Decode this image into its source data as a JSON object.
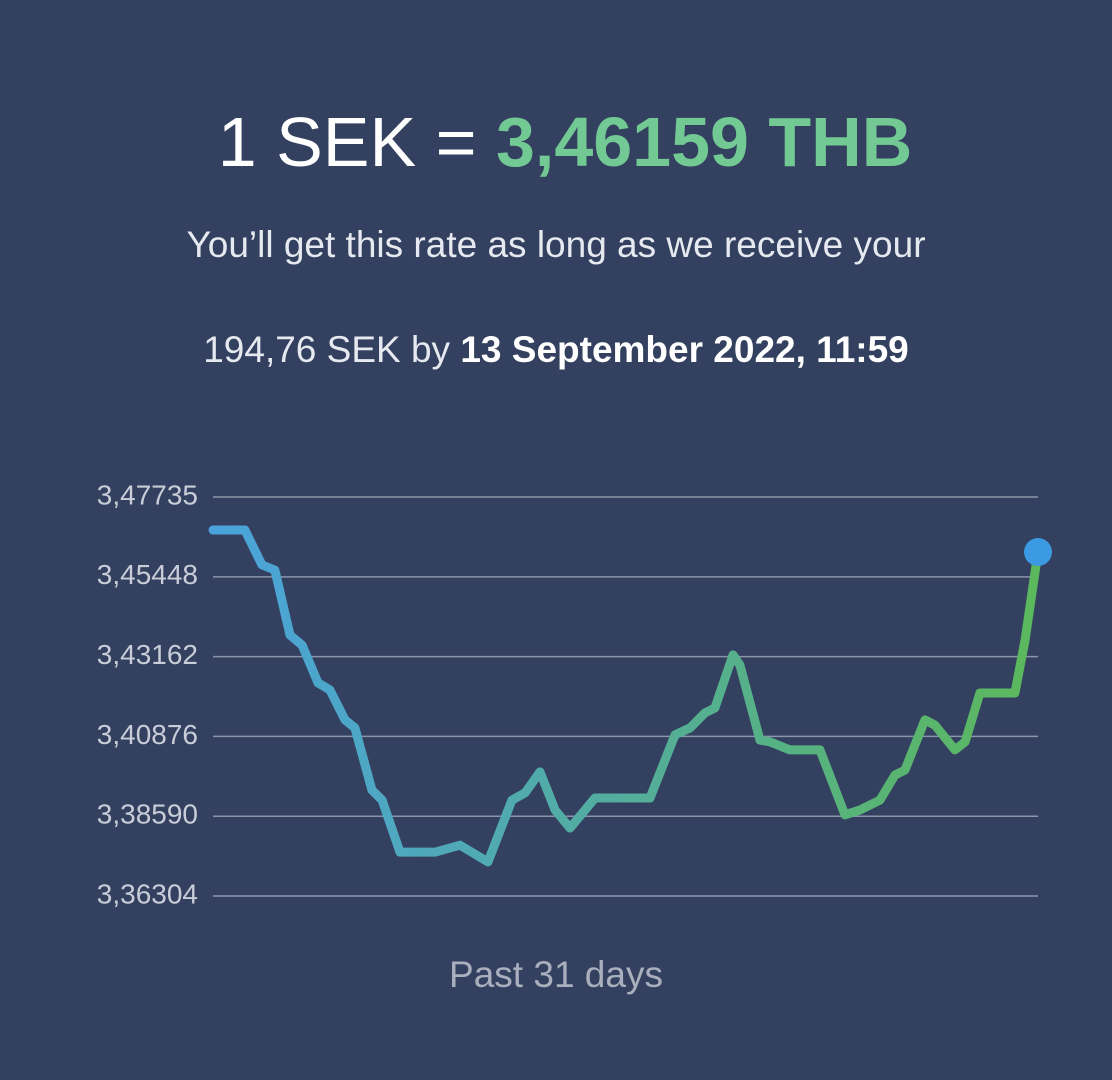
{
  "header": {
    "rate_prefix": "1 SEK = ",
    "rate_value": "3,46159 THB",
    "subtitle": "You’ll get this rate as long as we receive your",
    "amount_prefix": "194,76 SEK by ",
    "deadline": "13 September 2022, 11:59"
  },
  "chart_data": {
    "type": "line",
    "xlabel": "Past 31 days",
    "x": [
      0,
      1.16,
      1.78,
      2.25,
      2.8,
      3.24,
      3.82,
      4.25,
      4.8,
      5.16,
      5.78,
      6.15,
      6.8,
      8.07,
      8.98,
      10,
      10.87,
      11.35,
      11.89,
      12.44,
      12.98,
      13.89,
      15.89,
      16.8,
      17.35,
      17.89,
      18.25,
      18.91,
      19.16,
      19.89,
      20.25,
      20.98,
      22.07,
      22.98,
      23.53,
      24.25,
      24.8,
      25.16,
      25.89,
      26.25,
      26.98,
      27.35,
      27.89,
      29.16,
      29.53,
      30
    ],
    "xlim": [
      0,
      30
    ],
    "series": [
      {
        "values": [
          3.4679,
          3.4679,
          3.4579,
          3.4564,
          3.4378,
          3.4349,
          3.4241,
          3.4221,
          3.4135,
          3.4112,
          3.3934,
          3.3905,
          3.3756,
          3.3756,
          3.3776,
          3.3728,
          3.3905,
          3.3926,
          3.3986,
          3.3877,
          3.3825,
          3.3911,
          3.3911,
          3.4092,
          3.4112,
          3.4155,
          3.4169,
          3.4321,
          3.4292,
          3.4077,
          3.4072,
          3.4049,
          3.4049,
          3.3863,
          3.3877,
          3.3905,
          3.3977,
          3.3991,
          3.4135,
          3.412,
          3.4049,
          3.4072,
          3.4212,
          3.4212,
          3.4364,
          3.46159
        ],
        "color_start": "#4aa3dc",
        "color_end": "#5cb85c",
        "marker_color": "#3b9ae1"
      }
    ],
    "ylim": [
      3.36304,
      3.47735
    ],
    "yticks": [
      {
        "value": 3.36304,
        "label": "3,36304"
      },
      {
        "value": 3.3859,
        "label": "3,38590"
      },
      {
        "value": 3.40876,
        "label": "3,40876"
      },
      {
        "value": 3.43162,
        "label": "3,43162"
      },
      {
        "value": 3.45448,
        "label": "3,45448"
      },
      {
        "value": 3.47735,
        "label": "3,47735"
      }
    ],
    "grid": true
  }
}
